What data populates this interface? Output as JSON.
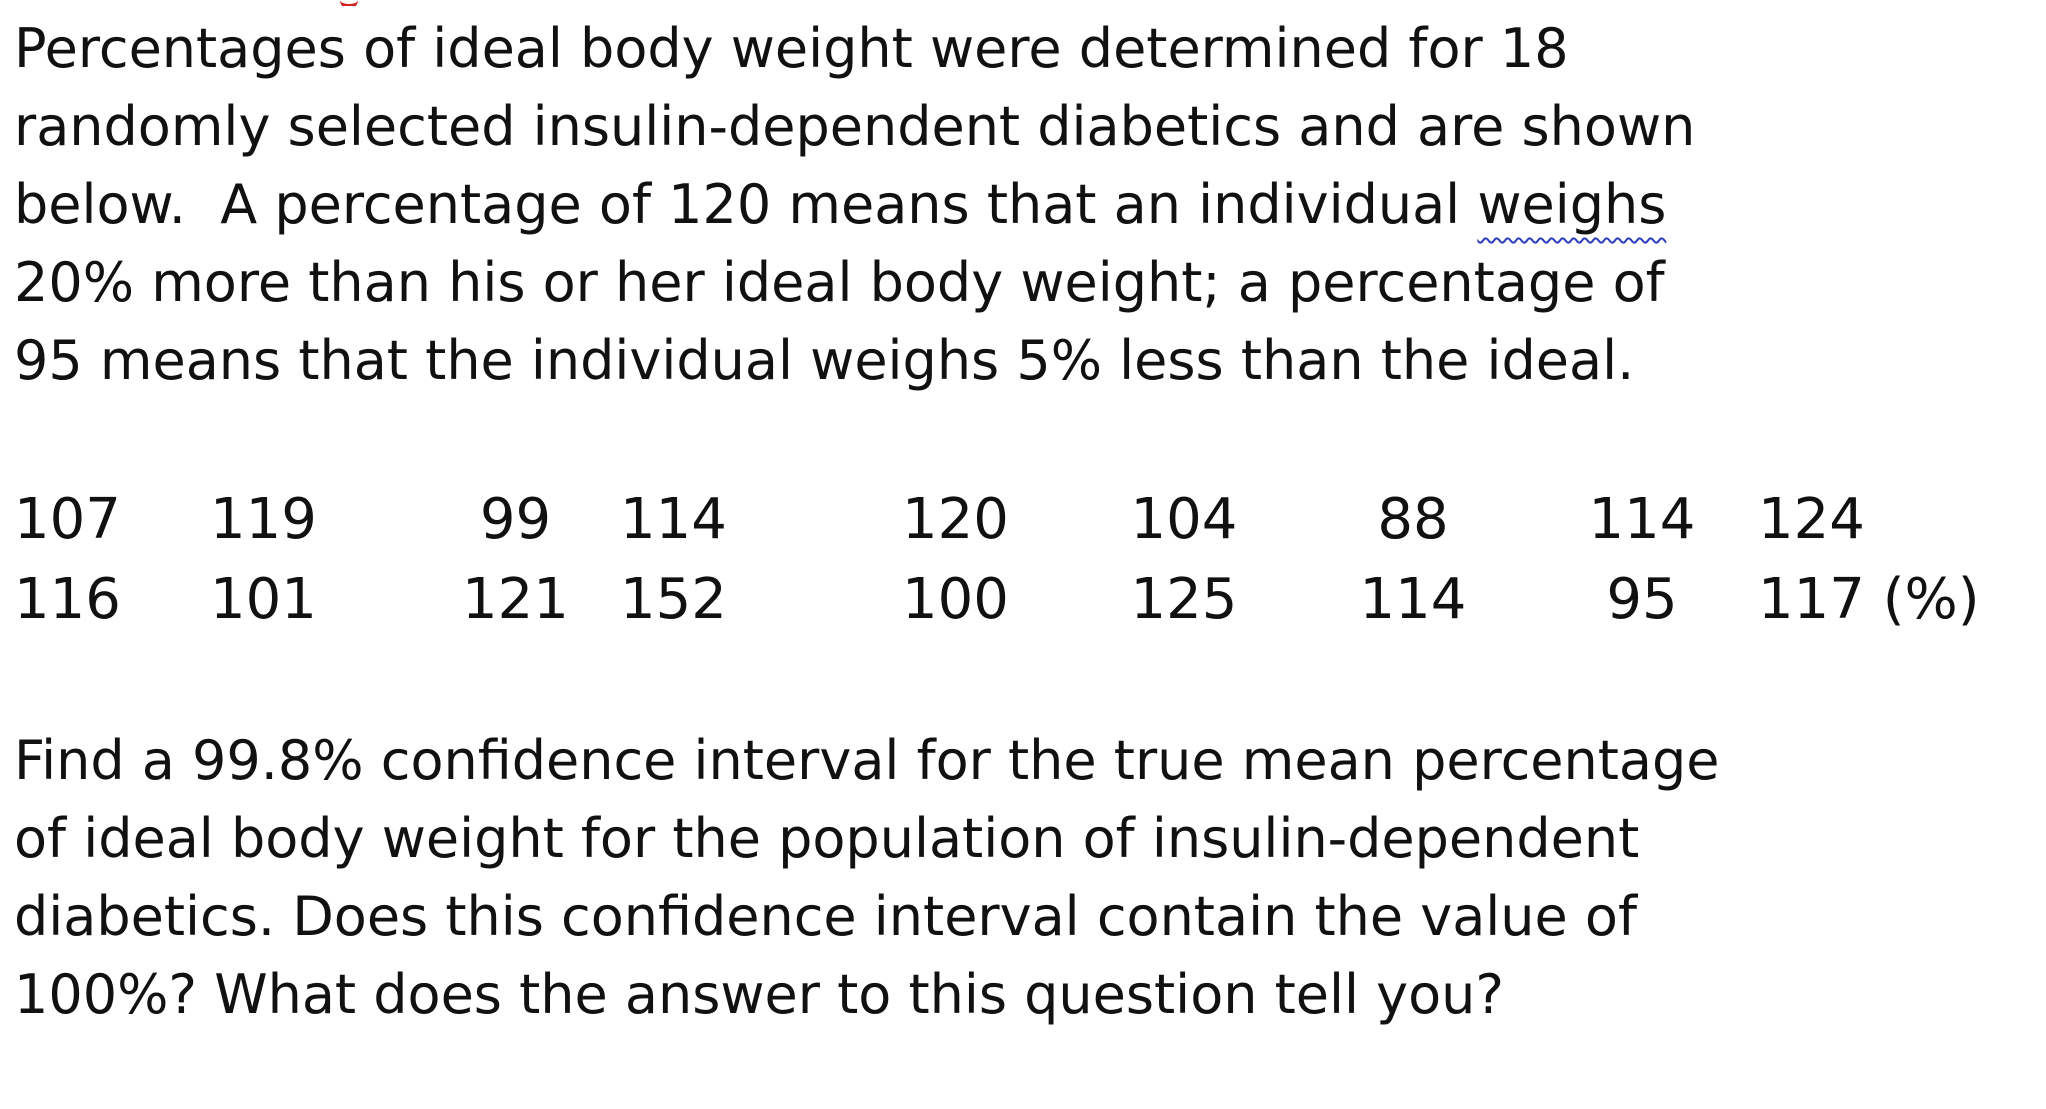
{
  "intro": {
    "lines": [
      "Percentages of ideal body weight were determined for 18",
      "randomly selected insulin-dependent diabetics and are shown",
      "below.  A percentage of 120 means that an individual ",
      "20% more than his or her ideal body weight; a percentage of",
      "95 means that the individual weighs 5% less than the ideal."
    ],
    "flagged_word": "weighs"
  },
  "data": {
    "rows": [
      [
        "107",
        "119",
        "99",
        "114",
        "120",
        "104",
        "88",
        "114",
        "124"
      ],
      [
        "116",
        "101",
        "121",
        "152",
        "100",
        "125",
        "114",
        "95",
        "117 (%)"
      ]
    ]
  },
  "question": {
    "lines": [
      "Find a 99.8% confidence interval for the true mean percentage",
      "of ideal body weight for the population of insulin-dependent",
      "diabetics.  Does this confidence interval contain the value of",
      "100%?  What does the answer to this question tell you?"
    ]
  }
}
